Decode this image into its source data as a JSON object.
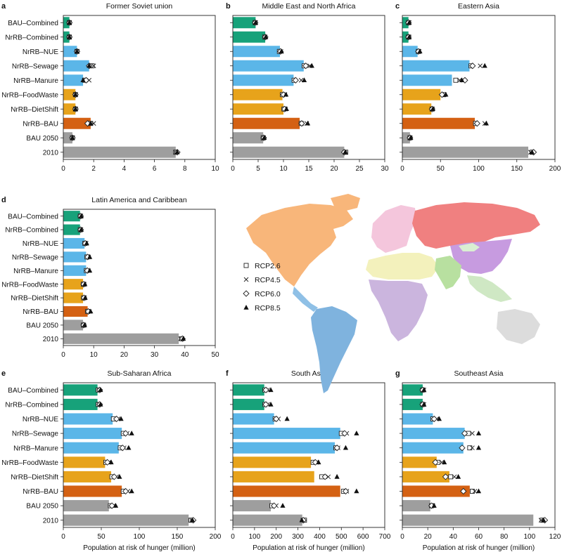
{
  "figure": {
    "categories": [
      "BAU–Combined",
      "NrRB–Combined",
      "NrRB–NUE",
      "NrRB–Sewage",
      "NrRB–Manure",
      "NrRB–FoodWaste",
      "NrRB–DietShift",
      "NrRB–BAU",
      "BAU 2050",
      "2010"
    ],
    "xlabel": "Population at risk of hunger (million)",
    "colors": {
      "green": "#17a27a",
      "blue": "#5bb6e8",
      "orange": "#e7a31b",
      "darkorange": "#d46113",
      "gray": "#9e9e9e",
      "frame": "#222222"
    },
    "bar_colors": [
      "green",
      "green",
      "blue",
      "blue",
      "blue",
      "orange",
      "orange",
      "darkorange",
      "gray",
      "gray"
    ],
    "legend": [
      {
        "marker": "square",
        "label": "RCP2.6"
      },
      {
        "marker": "x",
        "label": "RCP4.5"
      },
      {
        "marker": "diamond",
        "label": "RCP6.0"
      },
      {
        "marker": "triangle",
        "label": "RCP8.5"
      }
    ],
    "map_icon": "world-regions-map"
  },
  "chart_data": [
    {
      "type": "bar",
      "letter": "a",
      "title": "Former Soviet union",
      "xlim": [
        0,
        10
      ],
      "ticks": [
        0,
        2,
        4,
        6,
        8,
        10
      ],
      "xlabel": "",
      "values": [
        0.4,
        0.4,
        0.9,
        1.7,
        1.3,
        0.8,
        0.8,
        1.8,
        0.6,
        7.4
      ],
      "markers": {
        "RCP2.6": [
          0.4,
          0.4,
          0.9,
          1.9,
          1.4,
          0.8,
          0.8,
          1.8,
          0.6,
          7.4
        ],
        "RCP4.5": [
          0.4,
          0.4,
          0.9,
          2.0,
          1.7,
          0.8,
          0.8,
          2.0,
          0.6,
          7.4
        ],
        "RCP6.0": [
          0.4,
          0.4,
          0.9,
          1.7,
          1.5,
          0.8,
          0.8,
          1.6,
          0.6,
          7.5
        ],
        "RCP8.5": [
          0.4,
          0.4,
          0.9,
          1.7,
          1.3,
          0.8,
          0.8,
          1.8,
          0.6,
          7.5
        ]
      }
    },
    {
      "type": "bar",
      "letter": "b",
      "title": "Middle East and North Africa",
      "xlim": [
        0,
        30
      ],
      "ticks": [
        0,
        5,
        10,
        15,
        20,
        25,
        30
      ],
      "xlabel": "",
      "values": [
        4.5,
        6.4,
        9.3,
        14.0,
        12.0,
        9.8,
        10.0,
        13.2,
        6.0,
        22.0
      ],
      "markers": {
        "RCP2.6": [
          4.4,
          6.3,
          9.2,
          14.1,
          12.1,
          9.8,
          10.1,
          13.5,
          6.0,
          22.3
        ],
        "RCP4.5": [
          4.5,
          6.4,
          9.5,
          15.2,
          13.5,
          10.3,
          10.4,
          14.6,
          6.1,
          22.1
        ],
        "RCP6.0": [
          4.4,
          6.4,
          9.4,
          14.4,
          12.4,
          10.0,
          10.2,
          13.6,
          6.1,
          22.0
        ],
        "RCP8.5": [
          4.5,
          6.5,
          9.6,
          15.6,
          14.1,
          10.5,
          10.6,
          14.8,
          6.2,
          22.2
        ]
      }
    },
    {
      "type": "bar",
      "letter": "c",
      "title": "Eastern Asia",
      "xlim": [
        0,
        200
      ],
      "ticks": [
        0,
        50,
        100,
        150,
        200
      ],
      "xlabel": "",
      "values": [
        8,
        8,
        20,
        88,
        65,
        50,
        38,
        95,
        10,
        165
      ],
      "markers": {
        "RCP2.6": [
          8,
          8,
          21,
          90,
          70,
          54,
          39,
          96,
          10,
          170
        ],
        "RCP4.5": [
          9,
          9,
          22,
          102,
          75,
          55,
          39,
          108,
          10,
          168
        ],
        "RCP6.0": [
          8,
          8,
          21,
          92,
          82,
          52,
          39,
          98,
          10,
          172
        ],
        "RCP8.5": [
          9,
          9,
          23,
          108,
          78,
          57,
          40,
          110,
          11,
          170
        ]
      }
    },
    {
      "type": "bar",
      "letter": "d",
      "title": "Latin America and Caribbean",
      "xlim": [
        0,
        50
      ],
      "ticks": [
        0,
        10,
        20,
        30,
        40,
        50
      ],
      "xlabel": "",
      "values": [
        5.5,
        5.5,
        7.0,
        7.5,
        7.5,
        6.5,
        6.5,
        8.0,
        6.5,
        38.0
      ],
      "markers": {
        "RCP2.6": [
          5.6,
          5.6,
          7.1,
          7.8,
          7.6,
          6.6,
          6.7,
          8.0,
          6.6,
          39.0
        ],
        "RCP4.5": [
          5.8,
          5.8,
          7.5,
          8.3,
          8.2,
          6.9,
          7.0,
          8.5,
          6.8,
          38.6
        ],
        "RCP6.0": [
          5.7,
          5.7,
          7.2,
          8.0,
          7.9,
          6.7,
          6.8,
          8.2,
          6.7,
          39.2
        ],
        "RCP8.5": [
          5.9,
          5.9,
          7.7,
          8.7,
          8.7,
          7.1,
          7.2,
          9.0,
          7.0,
          39.5
        ]
      }
    },
    {
      "type": "bar",
      "letter": "e",
      "title": "Sub-Saharan Africa",
      "xlim": [
        0,
        200
      ],
      "ticks": [
        0,
        50,
        100,
        150,
        200
      ],
      "xlabel": "Population at risk of hunger (million)",
      "values": [
        45,
        45,
        65,
        77,
        73,
        55,
        63,
        77,
        60,
        165
      ],
      "markers": {
        "RCP2.6": [
          46,
          46,
          66,
          79,
          75,
          56,
          64,
          79,
          62,
          168
        ],
        "RCP4.5": [
          47,
          47,
          72,
          84,
          80,
          60,
          70,
          85,
          66,
          169
        ],
        "RCP6.0": [
          48,
          48,
          70,
          82,
          78,
          58,
          67,
          82,
          64,
          171
        ],
        "RCP8.5": [
          49,
          49,
          76,
          90,
          86,
          63,
          74,
          90,
          69,
          170
        ]
      }
    },
    {
      "type": "bar",
      "letter": "f",
      "title": "South Asia",
      "xlim": [
        0,
        700
      ],
      "ticks": [
        0,
        100,
        200,
        300,
        400,
        500,
        600,
        700
      ],
      "xlabel": "Population at risk of hunger (million)",
      "values": [
        145,
        145,
        190,
        495,
        470,
        360,
        375,
        495,
        175,
        320
      ],
      "markers": {
        "RCP2.6": [
          148,
          148,
          195,
          500,
          475,
          370,
          410,
          510,
          180,
          330
        ],
        "RCP4.5": [
          160,
          160,
          210,
          525,
          485,
          385,
          440,
          525,
          200,
          322
        ],
        "RCP6.0": [
          152,
          152,
          200,
          515,
          480,
          380,
          425,
          520,
          190,
          325
        ],
        "RCP8.5": [
          175,
          175,
          250,
          570,
          520,
          395,
          480,
          570,
          230,
          318
        ]
      }
    },
    {
      "type": "bar",
      "letter": "g",
      "title": "Southeast Asia",
      "xlim": [
        0,
        120
      ],
      "ticks": [
        0,
        20,
        40,
        60,
        80,
        100,
        120
      ],
      "xlabel": "Population at risk of hunger (million)",
      "values": [
        16,
        16,
        24,
        49,
        48,
        27,
        37,
        53,
        22,
        103
      ],
      "markers": {
        "RCP2.6": [
          16,
          16,
          24,
          52,
          53,
          28,
          38,
          55,
          23,
          110
        ],
        "RCP4.5": [
          17,
          17,
          27,
          55,
          55,
          31,
          41,
          57,
          24,
          109
        ],
        "RCP6.0": [
          16,
          16,
          25,
          49,
          47,
          26,
          34,
          48,
          23,
          112
        ],
        "RCP8.5": [
          17,
          17,
          29,
          60,
          60,
          33,
          44,
          60,
          25,
          111
        ]
      }
    }
  ]
}
